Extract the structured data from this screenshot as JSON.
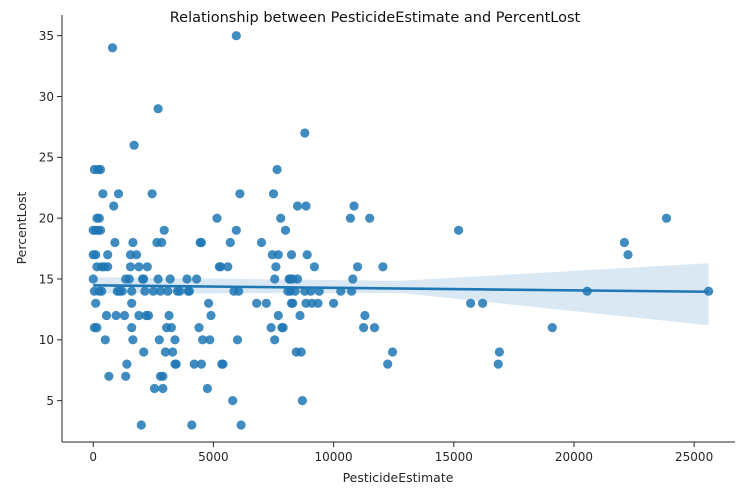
{
  "chart_data": {
    "type": "scatter",
    "title": "Relationship between PesticideEstimate and PercentLost",
    "xlabel": "PesticideEstimate",
    "ylabel": "PercentLost",
    "xlim": [
      -1300,
      26700
    ],
    "ylim": [
      1.6,
      36.7
    ],
    "xticks": [
      0,
      5000,
      10000,
      15000,
      20000,
      25000
    ],
    "yticks": [
      5,
      10,
      15,
      20,
      25,
      30,
      35
    ],
    "grid": false,
    "legend": "none",
    "colors": {
      "points": "#1f77b4",
      "line": "#1f77b4",
      "band": "#aecde6"
    },
    "regression": {
      "x": [
        0,
        25600
      ],
      "y": [
        14.48,
        13.95
      ],
      "ci_x": [
        0,
        12800,
        25600
      ],
      "ci_upper": [
        15.15,
        14.85,
        16.3
      ],
      "ci_lower": [
        13.8,
        13.85,
        11.2
      ]
    },
    "points": [
      [
        50,
        24
      ],
      [
        200,
        24
      ],
      [
        300,
        24
      ],
      [
        150,
        20
      ],
      [
        250,
        20
      ],
      [
        200,
        19
      ],
      [
        0,
        19
      ],
      [
        100,
        19
      ],
      [
        300,
        19
      ],
      [
        0,
        17
      ],
      [
        100,
        17
      ],
      [
        0,
        15
      ],
      [
        50,
        14
      ],
      [
        250,
        14
      ],
      [
        350,
        14
      ],
      [
        150,
        16
      ],
      [
        350,
        16
      ],
      [
        450,
        16
      ],
      [
        400,
        22
      ],
      [
        50,
        11
      ],
      [
        150,
        11
      ],
      [
        100,
        13
      ],
      [
        500,
        10
      ],
      [
        550,
        12
      ],
      [
        600,
        16
      ],
      [
        600,
        17
      ],
      [
        650,
        7
      ],
      [
        800,
        34
      ],
      [
        850,
        21
      ],
      [
        900,
        18
      ],
      [
        950,
        12
      ],
      [
        1000,
        14
      ],
      [
        1050,
        22
      ],
      [
        1100,
        14
      ],
      [
        1200,
        14
      ],
      [
        1300,
        12
      ],
      [
        1350,
        15
      ],
      [
        1350,
        7
      ],
      [
        1400,
        8
      ],
      [
        1500,
        15
      ],
      [
        1550,
        17
      ],
      [
        1550,
        16
      ],
      [
        1600,
        13
      ],
      [
        1600,
        11
      ],
      [
        1600,
        14
      ],
      [
        1650,
        10
      ],
      [
        1650,
        18
      ],
      [
        1700,
        26
      ],
      [
        1800,
        17
      ],
      [
        1900,
        16
      ],
      [
        1900,
        12
      ],
      [
        2000,
        3
      ],
      [
        2050,
        15
      ],
      [
        2100,
        9
      ],
      [
        2100,
        15
      ],
      [
        2150,
        14
      ],
      [
        2200,
        12
      ],
      [
        2250,
        16
      ],
      [
        2300,
        12
      ],
      [
        2450,
        22
      ],
      [
        2500,
        14
      ],
      [
        2550,
        6
      ],
      [
        2650,
        18
      ],
      [
        2700,
        15
      ],
      [
        2700,
        29
      ],
      [
        2750,
        10
      ],
      [
        2800,
        14
      ],
      [
        2800,
        7
      ],
      [
        2850,
        18
      ],
      [
        2900,
        6
      ],
      [
        2900,
        7
      ],
      [
        2950,
        19
      ],
      [
        3000,
        9
      ],
      [
        3050,
        11
      ],
      [
        3100,
        14
      ],
      [
        3150,
        12
      ],
      [
        3200,
        15
      ],
      [
        3250,
        11
      ],
      [
        3300,
        9
      ],
      [
        3400,
        10
      ],
      [
        3400,
        8
      ],
      [
        3450,
        8
      ],
      [
        3500,
        14
      ],
      [
        3600,
        14
      ],
      [
        3900,
        15
      ],
      [
        3950,
        14
      ],
      [
        4000,
        14
      ],
      [
        4100,
        3
      ],
      [
        4200,
        8
      ],
      [
        4300,
        15
      ],
      [
        4400,
        11
      ],
      [
        4450,
        18
      ],
      [
        4500,
        18
      ],
      [
        4500,
        8
      ],
      [
        4550,
        10
      ],
      [
        4750,
        6
      ],
      [
        4800,
        13
      ],
      [
        4850,
        10
      ],
      [
        4900,
        12
      ],
      [
        5150,
        20
      ],
      [
        5250,
        16
      ],
      [
        5300,
        16
      ],
      [
        5350,
        8
      ],
      [
        5400,
        8
      ],
      [
        5600,
        16
      ],
      [
        5700,
        18
      ],
      [
        5800,
        5
      ],
      [
        5850,
        14
      ],
      [
        5950,
        19
      ],
      [
        5950,
        35
      ],
      [
        6000,
        10
      ],
      [
        6050,
        14
      ],
      [
        6100,
        22
      ],
      [
        6150,
        3
      ],
      [
        6800,
        13
      ],
      [
        7000,
        18
      ],
      [
        7200,
        13
      ],
      [
        7400,
        11
      ],
      [
        7450,
        17
      ],
      [
        7500,
        22
      ],
      [
        7550,
        15
      ],
      [
        7550,
        10
      ],
      [
        7600,
        16
      ],
      [
        7650,
        24
      ],
      [
        7700,
        17
      ],
      [
        7700,
        12
      ],
      [
        7800,
        20
      ],
      [
        7850,
        11
      ],
      [
        7900,
        11
      ],
      [
        8000,
        19
      ],
      [
        8100,
        14
      ],
      [
        8150,
        15
      ],
      [
        8200,
        15
      ],
      [
        8200,
        14
      ],
      [
        8250,
        17
      ],
      [
        8250,
        13
      ],
      [
        8300,
        13
      ],
      [
        8300,
        15
      ],
      [
        8400,
        14
      ],
      [
        8450,
        9
      ],
      [
        8500,
        21
      ],
      [
        8500,
        15
      ],
      [
        8600,
        12
      ],
      [
        8650,
        9
      ],
      [
        8700,
        5
      ],
      [
        8800,
        14
      ],
      [
        8800,
        27
      ],
      [
        8850,
        21
      ],
      [
        8850,
        13
      ],
      [
        8900,
        17
      ],
      [
        9050,
        14
      ],
      [
        9100,
        13
      ],
      [
        9200,
        16
      ],
      [
        9350,
        13
      ],
      [
        9400,
        14
      ],
      [
        10000,
        13
      ],
      [
        10300,
        14
      ],
      [
        10700,
        20
      ],
      [
        10750,
        14
      ],
      [
        10800,
        15
      ],
      [
        10850,
        21
      ],
      [
        11000,
        16
      ],
      [
        11250,
        11
      ],
      [
        11300,
        12
      ],
      [
        11500,
        20
      ],
      [
        11700,
        11
      ],
      [
        12050,
        16
      ],
      [
        12250,
        8
      ],
      [
        12450,
        9
      ],
      [
        15200,
        19
      ],
      [
        15700,
        13
      ],
      [
        16200,
        13
      ],
      [
        16850,
        8
      ],
      [
        16900,
        9
      ],
      [
        19100,
        11
      ],
      [
        20550,
        14
      ],
      [
        22100,
        18
      ],
      [
        22250,
        17
      ],
      [
        23850,
        20
      ],
      [
        25600,
        14
      ]
    ]
  }
}
